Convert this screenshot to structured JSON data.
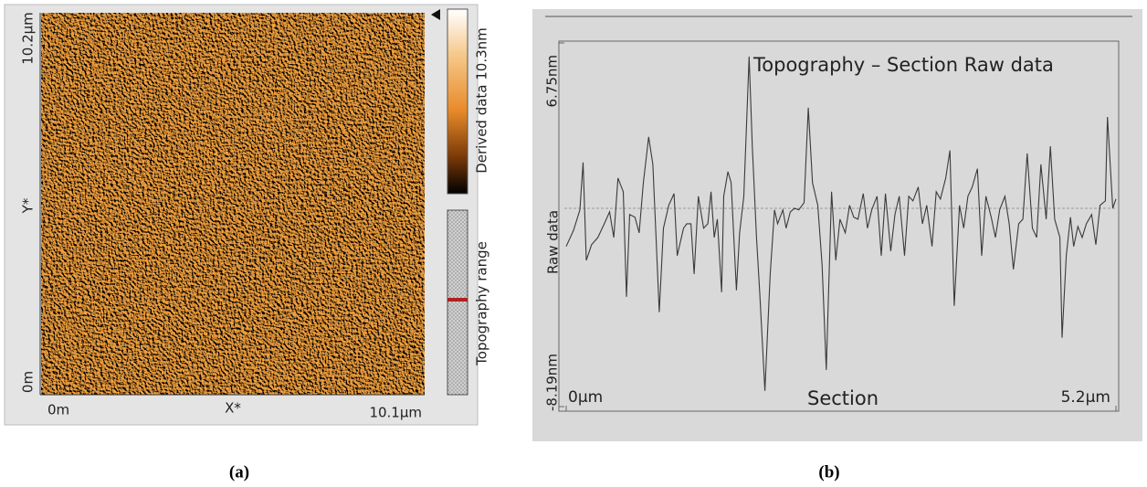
{
  "panel_a": {
    "y_labels": [
      "10.2µm",
      "Y*",
      "0m"
    ],
    "x_labels": [
      "0m",
      "X*",
      "10.1µm"
    ],
    "colorbar_label": "Derived data 10.3nm",
    "range_label": "Topography range",
    "caption": "(a)"
  },
  "chart_data": {
    "type": "line",
    "title": "Topography – Section Raw data",
    "xlabel": "Section",
    "ylabel": "Raw data",
    "caption": "(b)",
    "color": "#3a3a3a",
    "xlim": [
      0,
      5.2
    ],
    "ylim": [
      -8.19,
      6.75
    ],
    "xticks": [
      {
        "value": 0,
        "label": "0µm"
      },
      {
        "value": 5.2,
        "label": "5.2µm"
      }
    ],
    "yticks": [
      {
        "value": -8.19,
        "label": "-8.19nm"
      },
      {
        "value": 6.75,
        "label": "6.75nm"
      }
    ],
    "x": [
      0,
      0.07,
      0.13,
      0.16,
      0.19,
      0.24,
      0.3,
      0.36,
      0.41,
      0.45,
      0.49,
      0.54,
      0.57,
      0.6,
      0.65,
      0.69,
      0.73,
      0.78,
      0.82,
      0.85,
      0.88,
      0.92,
      0.97,
      1.02,
      1.05,
      1.11,
      1.14,
      1.18,
      1.21,
      1.25,
      1.3,
      1.34,
      1.37,
      1.4,
      1.43,
      1.47,
      1.49,
      1.53,
      1.56,
      1.61,
      1.64,
      1.68,
      1.73,
      1.76,
      1.8,
      1.83,
      1.88,
      1.93,
      1.97,
      2.0,
      2.05,
      2.08,
      2.12,
      2.16,
      2.2,
      2.25,
      2.29,
      2.33,
      2.38,
      2.42,
      2.46,
      2.51,
      2.55,
      2.59,
      2.64,
      2.68,
      2.72,
      2.76,
      2.81,
      2.85,
      2.89,
      2.94,
      2.98,
      3.02,
      3.07,
      3.11,
      3.15,
      3.2,
      3.24,
      3.28,
      3.33,
      3.37,
      3.41,
      3.46,
      3.5,
      3.54,
      3.59,
      3.63,
      3.67,
      3.72,
      3.76,
      3.8,
      3.84,
      3.89,
      3.93,
      3.97,
      4.02,
      4.06,
      4.1,
      4.15,
      4.19,
      4.23,
      4.28,
      4.32,
      4.36,
      4.41,
      4.45,
      4.49,
      4.54,
      4.58,
      4.62,
      4.67,
      4.69,
      4.73,
      4.77,
      4.8,
      4.84,
      4.88,
      4.92,
      4.97,
      5.01,
      5.05,
      5.1,
      5.12,
      5.17,
      5.2
    ],
    "values": [
      -1.61,
      -0.94,
      -0.11,
      1.84,
      -2.18,
      -1.54,
      -1.24,
      -0.68,
      -0.19,
      -1.24,
      1.2,
      0.64,
      -3.68,
      -0.3,
      -0.41,
      -1.05,
      1.01,
      2.89,
      1.76,
      -1.24,
      -4.31,
      -0.86,
      0.08,
      0.56,
      -1.99,
      -0.86,
      -0.68,
      -0.68,
      -2.74,
      0.45,
      -0.86,
      -0.68,
      0.64,
      -1.24,
      -0.49,
      -3.49,
      0.45,
      1.46,
      1.01,
      -3.41,
      -1.05,
      0.45,
      6.19,
      2.51,
      -1.24,
      -3.49,
      -7.54,
      -2.74,
      -0.11,
      -0.68,
      -0.11,
      -0.86,
      -0.19,
      -0.04,
      -0.11,
      0.19,
      4.09,
      1.01,
      0.08,
      -2.36,
      -6.68,
      0.64,
      -2.18,
      -0.49,
      -1.05,
      0.08,
      -0.41,
      -0.49,
      0.56,
      -0.86,
      -0.11,
      0.45,
      -1.99,
      0.56,
      -1.8,
      -0.3,
      0.45,
      -1.99,
      0.45,
      0.26,
      0.83,
      -0.68,
      0.08,
      -1.61,
      0.64,
      0.34,
      1.2,
      2.33,
      -4.05,
      0.08,
      -0.86,
      0.45,
      0.83,
      1.58,
      -1.99,
      0.45,
      -0.41,
      -1.24,
      -0.11,
      0.45,
      -0.68,
      -2.55,
      -0.68,
      -0.49,
      2.21,
      -0.86,
      -1.24,
      1.76,
      -0.49,
      2.51,
      -0.49,
      -1.24,
      -5.36,
      -1.99,
      -0.41,
      -1.61,
      -0.79,
      -1.24,
      -0.68,
      -0.3,
      -1.54,
      0.08,
      0.26,
      3.71,
      -0.04,
      0.34
    ]
  }
}
